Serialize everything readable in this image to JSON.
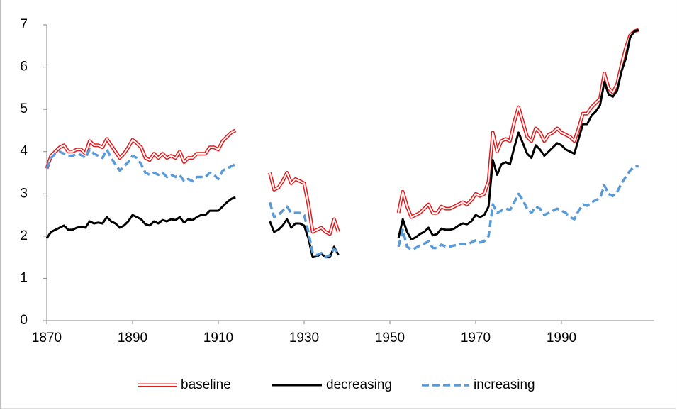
{
  "chart_data": {
    "type": "line",
    "x": [
      1870,
      1871,
      1872,
      1873,
      1874,
      1875,
      1876,
      1877,
      1878,
      1879,
      1880,
      1881,
      1882,
      1883,
      1884,
      1885,
      1886,
      1887,
      1888,
      1889,
      1890,
      1891,
      1892,
      1893,
      1894,
      1895,
      1896,
      1897,
      1898,
      1899,
      1900,
      1901,
      1902,
      1903,
      1904,
      1905,
      1906,
      1907,
      1908,
      1909,
      1910,
      1911,
      1912,
      1913,
      1914,
      1915,
      1916,
      1917,
      1918,
      1919,
      1920,
      1921,
      1922,
      1923,
      1924,
      1925,
      1926,
      1927,
      1928,
      1929,
      1930,
      1931,
      1932,
      1933,
      1934,
      1935,
      1936,
      1937,
      1938,
      1939,
      1940,
      1941,
      1942,
      1943,
      1944,
      1945,
      1946,
      1947,
      1948,
      1949,
      1950,
      1951,
      1952,
      1953,
      1954,
      1955,
      1956,
      1957,
      1958,
      1959,
      1960,
      1961,
      1962,
      1963,
      1964,
      1965,
      1966,
      1967,
      1968,
      1969,
      1970,
      1971,
      1972,
      1973,
      1974,
      1975,
      1976,
      1977,
      1978,
      1979,
      1980,
      1981,
      1982,
      1983,
      1984,
      1985,
      1986,
      1987,
      1988,
      1989,
      1990,
      1991,
      1992,
      1993,
      1994,
      1995,
      1996,
      1997,
      1998,
      1999,
      2000,
      2001,
      2002,
      2003,
      2004,
      2005,
      2006,
      2007,
      2008
    ],
    "series": [
      {
        "name": "baseline",
        "color": "#e41a1c",
        "style": "double",
        "values": [
          3.6,
          3.9,
          4.0,
          4.1,
          4.15,
          4.0,
          4.0,
          4.05,
          4.05,
          3.95,
          4.25,
          4.15,
          4.15,
          4.1,
          4.3,
          4.15,
          4.0,
          3.85,
          3.95,
          4.1,
          4.28,
          4.2,
          4.1,
          3.85,
          3.8,
          3.95,
          3.85,
          3.95,
          3.85,
          3.9,
          3.85,
          4.0,
          3.75,
          3.85,
          3.85,
          3.95,
          3.95,
          3.95,
          4.1,
          4.1,
          4.05,
          4.25,
          4.35,
          4.45,
          4.5,
          null,
          null,
          null,
          null,
          null,
          null,
          null,
          3.5,
          3.1,
          3.15,
          3.3,
          3.5,
          3.25,
          3.35,
          3.3,
          3.25,
          2.75,
          2.1,
          2.15,
          2.2,
          2.1,
          2.05,
          2.4,
          2.1,
          null,
          null,
          null,
          null,
          null,
          null,
          null,
          null,
          null,
          null,
          null,
          null,
          null,
          2.55,
          3.05,
          2.7,
          2.45,
          2.5,
          2.55,
          2.65,
          2.75,
          2.55,
          2.55,
          2.7,
          2.65,
          2.65,
          2.7,
          2.75,
          2.8,
          2.75,
          2.85,
          3.0,
          2.95,
          3.0,
          3.3,
          4.45,
          4.0,
          4.25,
          4.3,
          4.25,
          4.7,
          5.05,
          4.7,
          4.35,
          4.25,
          4.55,
          4.45,
          4.25,
          4.4,
          4.45,
          4.55,
          4.45,
          4.4,
          4.35,
          4.25,
          4.55,
          4.9,
          4.9,
          5.05,
          5.15,
          5.25,
          5.85,
          5.5,
          5.4,
          5.6,
          6.05,
          6.45,
          6.75,
          6.85,
          6.88
        ]
      },
      {
        "name": "decreasing",
        "color": "#000000",
        "style": "solid",
        "values": [
          1.95,
          2.1,
          2.15,
          2.2,
          2.25,
          2.15,
          2.15,
          2.2,
          2.22,
          2.2,
          2.35,
          2.3,
          2.32,
          2.3,
          2.45,
          2.35,
          2.3,
          2.2,
          2.25,
          2.35,
          2.5,
          2.45,
          2.4,
          2.28,
          2.25,
          2.35,
          2.3,
          2.38,
          2.35,
          2.4,
          2.38,
          2.45,
          2.32,
          2.4,
          2.38,
          2.45,
          2.5,
          2.5,
          2.6,
          2.6,
          2.6,
          2.7,
          2.8,
          2.88,
          2.92,
          null,
          null,
          null,
          null,
          null,
          null,
          null,
          2.35,
          2.1,
          2.15,
          2.25,
          2.4,
          2.2,
          2.3,
          2.3,
          2.25,
          1.95,
          1.5,
          1.52,
          1.58,
          1.5,
          1.5,
          1.75,
          1.55,
          null,
          null,
          null,
          null,
          null,
          null,
          null,
          null,
          null,
          null,
          null,
          null,
          null,
          1.95,
          2.4,
          2.1,
          1.92,
          1.97,
          2.05,
          2.1,
          2.2,
          2.02,
          2.05,
          2.18,
          2.15,
          2.15,
          2.18,
          2.25,
          2.3,
          2.28,
          2.35,
          2.5,
          2.45,
          2.5,
          2.7,
          3.8,
          3.45,
          3.7,
          3.75,
          3.7,
          4.1,
          4.45,
          4.2,
          3.95,
          3.85,
          4.15,
          4.05,
          3.9,
          4.0,
          4.1,
          4.2,
          4.15,
          4.05,
          4.0,
          3.95,
          4.3,
          4.65,
          4.65,
          4.85,
          4.95,
          5.1,
          5.65,
          5.35,
          5.3,
          5.45,
          5.9,
          6.2,
          6.7,
          6.85,
          6.88
        ]
      },
      {
        "name": "increasing",
        "color": "#5b9bd5",
        "style": "dashed",
        "values": [
          3.6,
          3.85,
          3.95,
          4.0,
          3.95,
          3.9,
          3.9,
          3.95,
          3.92,
          3.85,
          4.05,
          3.95,
          3.9,
          3.85,
          4.05,
          3.85,
          3.7,
          3.55,
          3.65,
          3.75,
          3.9,
          3.85,
          3.7,
          3.5,
          3.45,
          3.5,
          3.45,
          3.5,
          3.4,
          3.45,
          3.4,
          3.45,
          3.3,
          3.35,
          3.3,
          3.4,
          3.4,
          3.4,
          3.5,
          3.45,
          3.35,
          3.55,
          3.6,
          3.65,
          3.7,
          null,
          null,
          null,
          null,
          null,
          null,
          null,
          2.8,
          2.45,
          2.5,
          2.6,
          2.7,
          2.55,
          2.55,
          2.55,
          2.5,
          2.1,
          1.6,
          1.55,
          1.6,
          1.5,
          1.55,
          1.7,
          1.6,
          null,
          null,
          null,
          null,
          null,
          null,
          null,
          null,
          null,
          null,
          null,
          null,
          null,
          1.75,
          2.15,
          1.75,
          1.68,
          1.72,
          1.78,
          1.82,
          1.88,
          1.72,
          1.72,
          1.8,
          1.75,
          1.75,
          1.78,
          1.8,
          1.82,
          1.8,
          1.85,
          1.9,
          1.85,
          1.88,
          2.0,
          2.75,
          2.55,
          2.6,
          2.65,
          2.62,
          2.8,
          3.0,
          2.85,
          2.65,
          2.55,
          2.7,
          2.65,
          2.5,
          2.55,
          2.6,
          2.65,
          2.6,
          2.55,
          2.45,
          2.4,
          2.6,
          2.75,
          2.72,
          2.8,
          2.85,
          2.9,
          3.2,
          3.0,
          2.95,
          3.05,
          3.25,
          3.4,
          3.55,
          3.65,
          3.65
        ]
      }
    ],
    "xlim": [
      1870,
      2010
    ],
    "xticks": [
      1870,
      1890,
      1910,
      1930,
      1950,
      1970,
      1990
    ],
    "ylim": [
      0,
      7
    ],
    "yticks": [
      0,
      1,
      2,
      3,
      4,
      5,
      6,
      7
    ],
    "grid": false,
    "legend": "bottom"
  }
}
